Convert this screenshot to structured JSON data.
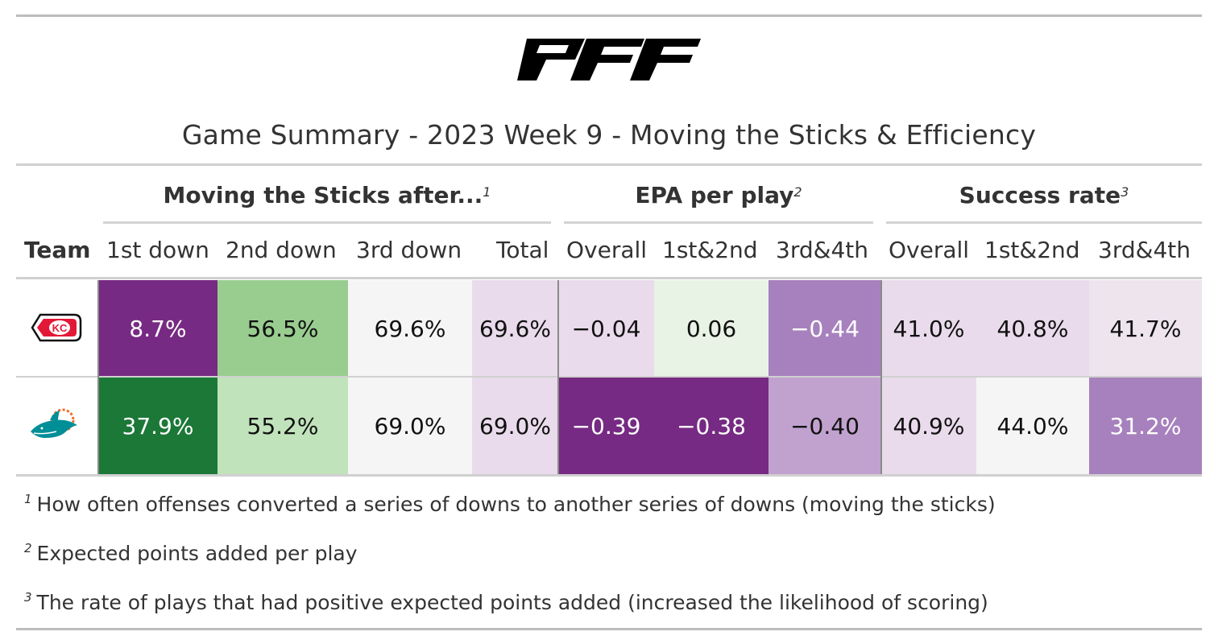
{
  "brand": {
    "logo_text": "PFF"
  },
  "title": "Game Summary - 2023 Week 9 - Moving the Sticks & Efficiency",
  "spanners": [
    {
      "label": "Moving the Sticks after...",
      "note": "1"
    },
    {
      "label": "EPA per play",
      "note": "2"
    },
    {
      "label": "Success rate",
      "note": "3"
    }
  ],
  "columns": [
    "Team",
    "1st down",
    "2nd down",
    "3rd down",
    "Total",
    "Overall",
    "1st&2nd",
    "3rd&4th",
    "Overall",
    "1st&2nd",
    "3rd&4th"
  ],
  "chart_data": {
    "type": "table",
    "title": "Game Summary - 2023 Week 9 - Moving the Sticks & Efficiency",
    "column_groups": [
      {
        "name": "Moving the Sticks after...",
        "columns": [
          "1st down",
          "2nd down",
          "3rd down",
          "Total"
        ]
      },
      {
        "name": "EPA per play",
        "columns": [
          "Overall",
          "1st&2nd",
          "3rd&4th"
        ]
      },
      {
        "name": "Success rate",
        "columns": [
          "Overall",
          "1st&2nd",
          "3rd&4th"
        ]
      }
    ],
    "rows": [
      {
        "team_logo": "chiefs-arrowhead-logo",
        "cells": [
          {
            "text": "8.7%",
            "bg": "#762a83",
            "dark": true
          },
          {
            "text": "56.5%",
            "bg": "#99cd90",
            "dark": false
          },
          {
            "text": "69.6%",
            "bg": "#f6f5f6",
            "dark": false
          },
          {
            "text": "69.6%",
            "bg": "#e9dbeb",
            "dark": false
          },
          {
            "text": "−0.04",
            "bg": "#e9dbeb",
            "dark": false
          },
          {
            "text": "0.06",
            "bg": "#e8f3e6",
            "dark": false
          },
          {
            "text": "−0.44",
            "bg": "#a781bd",
            "dark": true
          },
          {
            "text": "41.0%",
            "bg": "#e9dbeb",
            "dark": false
          },
          {
            "text": "40.8%",
            "bg": "#e9dbeb",
            "dark": false
          },
          {
            "text": "41.7%",
            "bg": "#ede4ee",
            "dark": false
          }
        ]
      },
      {
        "team_logo": "dolphins-logo",
        "cells": [
          {
            "text": "37.9%",
            "bg": "#1b7837",
            "dark": true
          },
          {
            "text": "55.2%",
            "bg": "#c1e3bb",
            "dark": false
          },
          {
            "text": "69.0%",
            "bg": "#f6f5f6",
            "dark": false
          },
          {
            "text": "69.0%",
            "bg": "#e9dbeb",
            "dark": false
          },
          {
            "text": "−0.39",
            "bg": "#762a83",
            "dark": true
          },
          {
            "text": "−0.38",
            "bg": "#762a83",
            "dark": true
          },
          {
            "text": "−0.40",
            "bg": "#c1a2cf",
            "dark": false
          },
          {
            "text": "40.9%",
            "bg": "#e9dbeb",
            "dark": false
          },
          {
            "text": "44.0%",
            "bg": "#f6f5f6",
            "dark": false
          },
          {
            "text": "31.2%",
            "bg": "#a781bd",
            "dark": true
          }
        ]
      }
    ],
    "footnotes": [
      {
        "mark": "1",
        "text": "How often offenses converted a series of downs to another series of downs (moving the sticks)"
      },
      {
        "mark": "2",
        "text": "Expected points added per play"
      },
      {
        "mark": "3",
        "text": "The rate of plays that had positive expected points added (increased the likelihood of scoring)"
      }
    ]
  }
}
